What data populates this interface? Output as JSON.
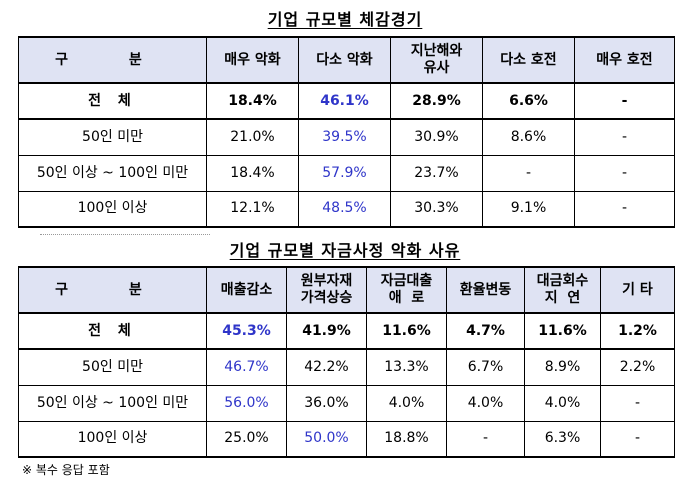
{
  "table1": {
    "title": "기업 규모별 체감경기",
    "headers": [
      "구  분",
      "매우 악화",
      "다소 악화",
      "지난해와\n유사",
      "다소 호전",
      "매우 호전"
    ],
    "rows": [
      {
        "label": "전  체",
        "cells": [
          "18.4%",
          "46.1%",
          "28.9%",
          "6.6%",
          "-"
        ]
      },
      {
        "label": "50인 미만",
        "cells": [
          "21.0%",
          "39.5%",
          "30.9%",
          "8.6%",
          "-"
        ]
      },
      {
        "label": "50인 이상 ~ 100인 미만",
        "cells": [
          "18.4%",
          "57.9%",
          "23.7%",
          "-",
          "-"
        ]
      },
      {
        "label": "100인 이상",
        "cells": [
          "12.1%",
          "48.5%",
          "30.3%",
          "9.1%",
          "-"
        ]
      }
    ]
  },
  "table2": {
    "title": "기업 규모별 자금사정 악화 사유",
    "headers": [
      "구  분",
      "매출감소",
      "원부자재\n가격상승",
      "자금대출\n애  로",
      "환율변동",
      "대금회수\n지  연",
      "기  타"
    ],
    "rows": [
      {
        "label": "전  체",
        "cells": [
          "45.3%",
          "41.9%",
          "11.6%",
          "4.7%",
          "11.6%",
          "1.2%"
        ]
      },
      {
        "label": "50인 미만",
        "cells": [
          "46.7%",
          "42.2%",
          "13.3%",
          "6.7%",
          "8.9%",
          "2.2%"
        ]
      },
      {
        "label": "50인 이상 ~ 100인 미만",
        "cells": [
          "56.0%",
          "36.0%",
          "4.0%",
          "4.0%",
          "4.0%",
          "-"
        ]
      },
      {
        "label": "100인 이상",
        "cells": [
          "25.0%",
          "50.0%",
          "18.8%",
          "-",
          "6.3%",
          "-"
        ]
      }
    ]
  },
  "note": "※ 복수 응답 포함",
  "colors": {
    "header_bg": "#dfe3f3",
    "highlight": "#2f35c9"
  }
}
